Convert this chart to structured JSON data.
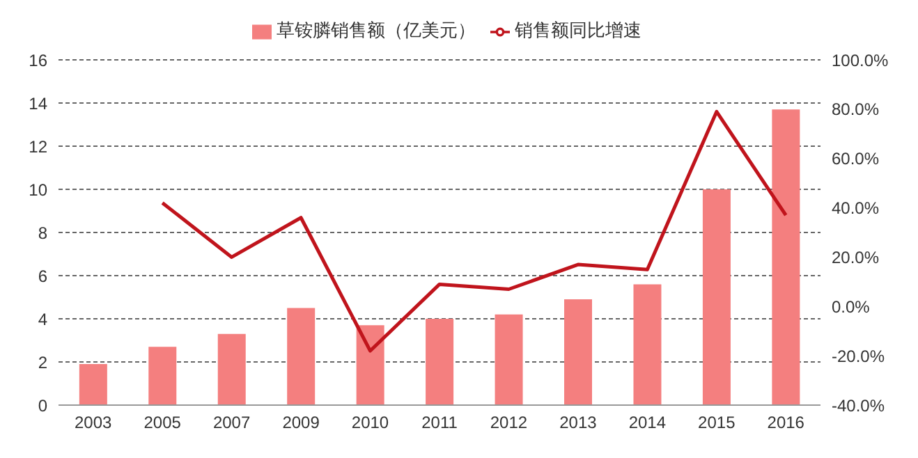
{
  "chart_data": {
    "type": "bar",
    "categories": [
      "2003",
      "2005",
      "2007",
      "2009",
      "2010",
      "2011",
      "2012",
      "2013",
      "2014",
      "2015",
      "2016"
    ],
    "series": [
      {
        "name": "草铵膦销售额（亿美元）",
        "color": "#f47f7f",
        "values": [
          1.9,
          2.7,
          3.3,
          4.5,
          3.7,
          4.0,
          4.2,
          4.9,
          5.6,
          10.0,
          13.7
        ]
      },
      {
        "name": "销售额同比增速",
        "type": "line",
        "axis": "y2",
        "color": "#c0141c",
        "values": [
          null,
          42,
          20,
          36,
          -18,
          9,
          7,
          17,
          15,
          79,
          37
        ]
      }
    ],
    "ylim": [
      0,
      16
    ],
    "yticks": [
      0,
      2,
      4,
      6,
      8,
      10,
      12,
      14,
      16
    ],
    "y2lim": [
      -40,
      100
    ],
    "y2ticks": [
      {
        "value": -40,
        "label": "-40.0%"
      },
      {
        "value": -20,
        "label": "-20.0%"
      },
      {
        "value": 0,
        "label": "0.0%"
      },
      {
        "value": 20,
        "label": "20.0%"
      },
      {
        "value": 40,
        "label": "40.0%"
      },
      {
        "value": 60,
        "label": "60.0%"
      },
      {
        "value": 80,
        "label": "80.0%"
      },
      {
        "value": 100,
        "label": "100.0%"
      }
    ],
    "grid": "y",
    "legend": "top",
    "marker": "none",
    "line_style": "solid"
  }
}
